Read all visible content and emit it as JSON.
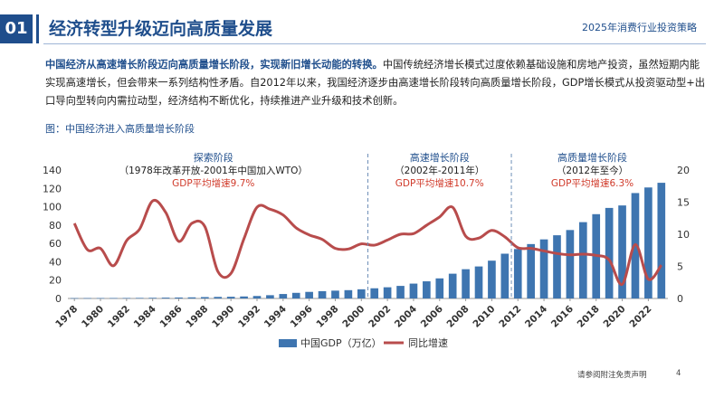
{
  "header": {
    "number": "01",
    "title": "经济转型升级迈向高质量发展",
    "report": "2025年消费行业投资策略"
  },
  "intro": {
    "lead": "中国经济从高速增长阶段迈向高质量增长阶段，实现新旧增长动能的转换。",
    "body": "中国传统经济增长模式过度依赖基础设施和房地产投资，虽然短期内能实现高速增长，但会带来一系列结构性矛盾。自2012年以来，我国经济逐步由高速增长阶段转向高质量增长阶段，GDP增长模式从投资驱动型+出口导向型转向内需拉动型，经济结构不断优化，持续推进产业升级和技术创新。"
  },
  "figure_caption": "图：中国经济进入高质量增长阶段",
  "footer": {
    "note": "请参阅附注免责声明",
    "page": "4"
  },
  "colors": {
    "bar": "#3e75b0",
    "line": "#b84c4c",
    "accent": "#1f4e8c",
    "phase_title": "#1f4e8c",
    "phase_rate": "#d03a2a"
  },
  "chart_data": {
    "type": "bar",
    "title": "",
    "x": [
      1978,
      1979,
      1980,
      1981,
      1982,
      1983,
      1984,
      1985,
      1986,
      1987,
      1988,
      1989,
      1990,
      1991,
      1992,
      1993,
      1994,
      1995,
      1996,
      1997,
      1998,
      1999,
      2000,
      2001,
      2002,
      2003,
      2004,
      2005,
      2006,
      2007,
      2008,
      2009,
      2010,
      2011,
      2012,
      2013,
      2014,
      2015,
      2016,
      2017,
      2018,
      2019,
      2020,
      2021,
      2022,
      2023
    ],
    "x_tick_labels": [
      "1978",
      "1980",
      "1982",
      "1984",
      "1986",
      "1988",
      "1990",
      "1992",
      "1994",
      "1996",
      "1998",
      "2000",
      "2002",
      "2004",
      "2006",
      "2008",
      "2010",
      "2012",
      "2014",
      "2016",
      "2018",
      "2020",
      "2022"
    ],
    "series": [
      {
        "name": "中国GDP（万亿）",
        "type": "bar",
        "axis": "left",
        "values": [
          0.37,
          0.41,
          0.46,
          0.49,
          0.54,
          0.6,
          0.72,
          0.9,
          1.03,
          1.21,
          1.51,
          1.71,
          1.87,
          2.19,
          2.7,
          3.57,
          4.86,
          6.13,
          7.18,
          7.97,
          8.52,
          9.06,
          10.0,
          11.1,
          12.2,
          13.7,
          16.2,
          18.7,
          21.9,
          27.0,
          31.9,
          34.9,
          41.2,
          48.8,
          53.9,
          59.3,
          64.4,
          68.9,
          74.6,
          83.2,
          91.9,
          98.7,
          101.4,
          114.9,
          121.0,
          126.1
        ]
      },
      {
        "name": "同比增速",
        "type": "line",
        "axis": "right",
        "values": [
          11.7,
          7.6,
          7.8,
          5.1,
          9.0,
          10.8,
          15.2,
          13.4,
          8.9,
          11.7,
          11.2,
          4.2,
          3.9,
          9.3,
          14.2,
          13.9,
          13.0,
          11.0,
          9.9,
          9.2,
          7.8,
          7.7,
          8.5,
          8.3,
          9.1,
          10.0,
          10.1,
          11.4,
          12.7,
          14.2,
          9.7,
          9.4,
          10.6,
          9.6,
          7.9,
          7.8,
          7.4,
          7.0,
          6.8,
          6.9,
          6.7,
          6.0,
          2.2,
          8.4,
          3.0,
          5.2
        ]
      }
    ],
    "ylim_left": [
      0,
      140
    ],
    "ylim_right": [
      0,
      20
    ],
    "yticks_left": [
      0,
      20,
      40,
      60,
      80,
      100,
      120,
      140
    ],
    "yticks_right": [
      0,
      5,
      10,
      15,
      20
    ],
    "grid": false,
    "legend_position": "bottom",
    "phase_boundaries": [
      2000.5,
      2011.5
    ],
    "phases": [
      {
        "name": "探索阶段",
        "period": "（1978年改革开放-2001年中国加入WTO）",
        "rate": "GDP平均增速9.7%"
      },
      {
        "name": "高速增长阶段",
        "period": "（2002年-2011年）",
        "rate": "GDP平均增速10.7%"
      },
      {
        "name": "高质量增长阶段",
        "period": "（2012年至今）",
        "rate": "GDP平均增速6.3%"
      }
    ]
  }
}
